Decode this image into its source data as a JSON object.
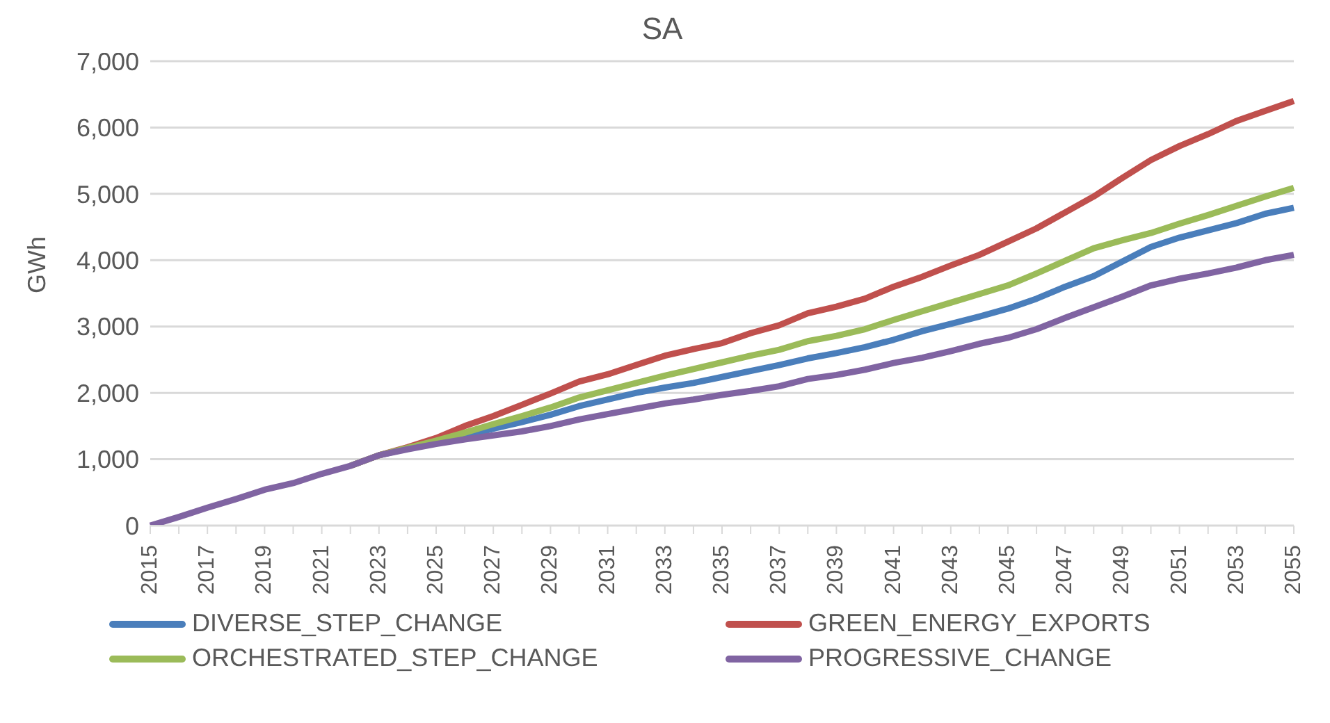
{
  "chart_data": {
    "type": "line",
    "title": "SA",
    "ylabel": "GWh",
    "categories": [
      "2015",
      null,
      "2017",
      null,
      "2019",
      null,
      "2021",
      null,
      "2023",
      null,
      "2025",
      null,
      "2027",
      null,
      "2029",
      null,
      "2031",
      null,
      "2033",
      null,
      "2035",
      null,
      "2037",
      null,
      "2039",
      null,
      "2041",
      null,
      "2043",
      null,
      "2045",
      null,
      "2047",
      null,
      "2049",
      null,
      "2051",
      null,
      "2053",
      null,
      "2055"
    ],
    "series": [
      {
        "name": "DIVERSE_STEP_CHANGE",
        "color": "#4a7ebb",
        "values": [
          null,
          null,
          null,
          null,
          null,
          null,
          null,
          900,
          1060,
          1160,
          1260,
          1350,
          1460,
          1560,
          1670,
          1800,
          1900,
          2000,
          2080,
          2150,
          2240,
          2330,
          2420,
          2520,
          2600,
          2690,
          2800,
          2930,
          3040,
          3150,
          3270,
          3420,
          3600,
          3760,
          3980,
          4200,
          4340,
          4450,
          4560,
          4700,
          4790
        ]
      },
      {
        "name": "GREEN_ENERGY_EXPORTS",
        "color": "#c0504d",
        "values": [
          null,
          null,
          null,
          null,
          null,
          null,
          null,
          900,
          1060,
          1180,
          1320,
          1500,
          1650,
          1820,
          1990,
          2170,
          2280,
          2420,
          2560,
          2660,
          2750,
          2900,
          3020,
          3200,
          3300,
          3420,
          3600,
          3750,
          3920,
          4080,
          4280,
          4480,
          4720,
          4960,
          5240,
          5510,
          5720,
          5900,
          6100,
          6250,
          6400
        ]
      },
      {
        "name": "ORCHESTRATED_STEP_CHANGE",
        "color": "#9bbb59",
        "values": [
          null,
          null,
          null,
          null,
          null,
          null,
          null,
          900,
          1060,
          1170,
          1280,
          1400,
          1530,
          1650,
          1780,
          1930,
          2040,
          2150,
          2260,
          2360,
          2460,
          2560,
          2650,
          2780,
          2860,
          2960,
          3100,
          3230,
          3360,
          3490,
          3620,
          3800,
          3990,
          4180,
          4300,
          4410,
          4550,
          4680,
          4820,
          4960,
          5090
        ]
      },
      {
        "name": "PROGRESSIVE_CHANGE",
        "color": "#8064a2",
        "values": [
          0,
          130,
          270,
          400,
          540,
          640,
          780,
          900,
          1060,
          1150,
          1230,
          1300,
          1360,
          1420,
          1500,
          1600,
          1680,
          1760,
          1840,
          1900,
          1970,
          2030,
          2100,
          2210,
          2270,
          2350,
          2450,
          2530,
          2630,
          2740,
          2830,
          2960,
          3130,
          3290,
          3450,
          3620,
          3720,
          3800,
          3890,
          4000,
          4080
        ]
      }
    ],
    "ylim": [
      0,
      7000
    ],
    "yticks": [
      0,
      {
        "value": 1000,
        "label": "1,000"
      },
      {
        "value": 2000,
        "label": "2,000"
      },
      {
        "value": 3000,
        "label": "3,000"
      },
      {
        "value": 4000,
        "label": "4,000"
      },
      {
        "value": 5000,
        "label": "5,000"
      },
      {
        "value": 6000,
        "label": "6,000"
      },
      {
        "value": 7000,
        "label": "7,000"
      }
    ],
    "grid": "y",
    "legend": "bottom",
    "marker": "none",
    "line_style": "solid"
  }
}
